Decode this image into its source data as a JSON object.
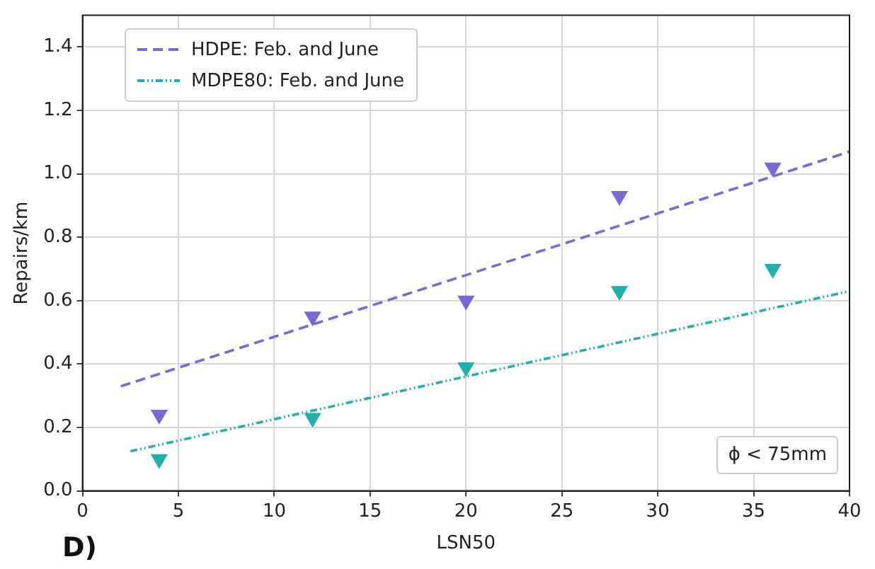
{
  "chart_data": {
    "type": "scatter",
    "xlabel": "LSN50",
    "ylabel": "Repairs/km",
    "xlim": [
      0,
      40
    ],
    "xticks": [
      0,
      5,
      10,
      15,
      20,
      25,
      30,
      35,
      40
    ],
    "ylim": [
      0,
      1.5
    ],
    "yticks": [
      {
        "value": 0,
        "label": "0.0"
      },
      0.2,
      0.4,
      0.6,
      0.8,
      {
        "value": 1,
        "label": "1.0"
      },
      1.2,
      1.4
    ],
    "grid": true,
    "legend": "top left",
    "marker": "triangle",
    "series": [
      {
        "type": "scatter",
        "color": "#7b68d8",
        "x": [
          4,
          12,
          20,
          28,
          36
        ],
        "values": [
          0.24,
          0.55,
          0.6,
          0.93,
          1.02
        ]
      },
      {
        "type": "scatter",
        "color": "#20b2a8",
        "x": [
          4,
          12,
          20,
          28,
          36
        ],
        "values": [
          0.1,
          0.23,
          0.39,
          0.63,
          0.7
        ]
      },
      {
        "type": "line",
        "name": "HDPE: Feb. and June",
        "color": "#7b68d8",
        "line_style": "dashed",
        "marker": "none",
        "x": [
          2,
          40
        ],
        "values": [
          0.33,
          1.07
        ]
      },
      {
        "type": "line",
        "name": "MDPE80: Feb. and June",
        "color": "#20b2a8",
        "line_style": "dotted",
        "marker": "none",
        "x": [
          2.5,
          40
        ],
        "values": [
          0.125,
          0.63
        ]
      }
    ],
    "annotations": [
      "ϕ < 75mm",
      "D)"
    ]
  }
}
